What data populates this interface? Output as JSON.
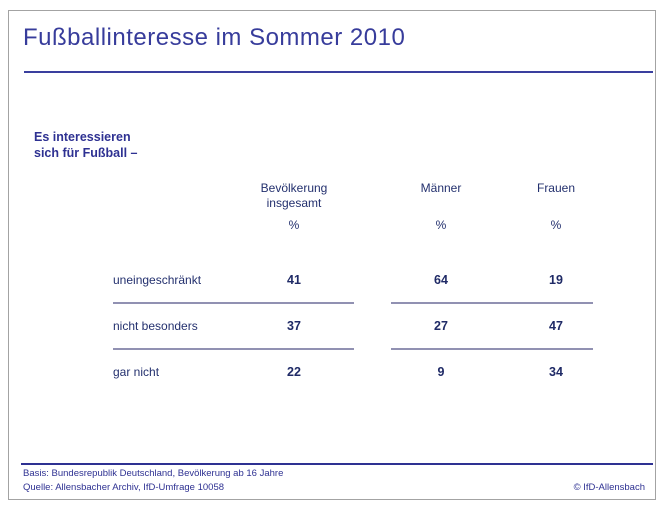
{
  "chart_data": {
    "type": "table",
    "title": "Fußballinteresse im Sommer 2010",
    "intro": "Es interessieren sich für Fußball –",
    "columns": [
      "Bevölkerung insgesamt",
      "Männer",
      "Frauen"
    ],
    "unit": "%",
    "rows": [
      {
        "label": "uneingeschränkt",
        "values": [
          41,
          64,
          19
        ]
      },
      {
        "label": "nicht besonders",
        "values": [
          37,
          27,
          47
        ]
      },
      {
        "label": "gar nicht",
        "values": [
          22,
          9,
          34
        ]
      }
    ]
  },
  "intro": {
    "line1": "Es interessieren",
    "line2": "sich für Fußball –"
  },
  "headers": {
    "col1_line1": "Bevölkerung",
    "col1_line2": "insgesamt",
    "col2": "Männer",
    "col3": "Frauen",
    "percent": "%"
  },
  "footer": {
    "basis": "Basis: Bundesrepublik Deutschland, Bevölkerung ab 16 Jahre",
    "quelle": "Quelle: Allensbacher Archiv, IfD-Umfrage 10058",
    "copyright": "© IfD-Allensbach"
  },
  "colors": {
    "accent": "#2e3192",
    "table_text": "#23306e",
    "separator": "#9191b2",
    "frame_border": "#a3a3a3"
  }
}
